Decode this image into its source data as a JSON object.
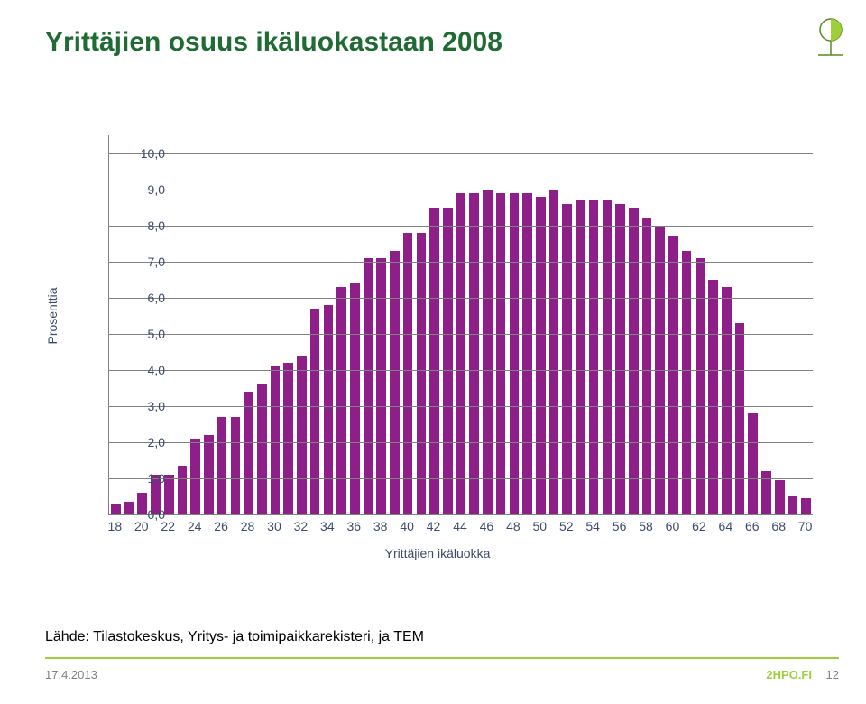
{
  "title": "Yrittäjien osuus ikäluokastaan 2008",
  "source": "Lähde: Tilastokeskus, Yritys- ja toimipaikkarekisteri, ja TEM",
  "footer": {
    "date": "17.4.2013",
    "brand": "2HPO.FI",
    "page": "12"
  },
  "logo": {
    "circle_fill": "#9ecf3b",
    "stroke": "#5a8a1f"
  },
  "chart": {
    "type": "bar",
    "ylabel": "Prosenttia",
    "xlabel": "Yrittäjien ikäluokka",
    "ylim": [
      0,
      10.5
    ],
    "ytick_step": 1.0,
    "ytick_labels": [
      "0,0",
      "1,0",
      "2,0",
      "3,0",
      "4,0",
      "5,0",
      "6,0",
      "7,0",
      "8,0",
      "9,0",
      "10,0"
    ],
    "xtick_every": 2,
    "bar_color": "#8e1f89",
    "grid_color": "#808080",
    "axis_color": "#808080",
    "background_color": "#ffffff",
    "label_color": "#3a4a6b",
    "label_fontsize": 14,
    "bar_width_ratio": 0.72,
    "categories": [
      18,
      19,
      20,
      21,
      22,
      23,
      24,
      25,
      26,
      27,
      28,
      29,
      30,
      31,
      32,
      33,
      34,
      35,
      36,
      37,
      38,
      39,
      40,
      41,
      42,
      43,
      44,
      45,
      46,
      47,
      48,
      49,
      50,
      51,
      52,
      53,
      54,
      55,
      56,
      57,
      58,
      59,
      60,
      61,
      62,
      63,
      64,
      65,
      66,
      67,
      68,
      69,
      70
    ],
    "values": [
      0.3,
      0.35,
      0.6,
      1.1,
      1.1,
      1.35,
      2.1,
      2.2,
      2.7,
      2.7,
      3.4,
      3.6,
      4.1,
      4.2,
      4.4,
      5.7,
      5.8,
      6.3,
      6.4,
      7.1,
      7.1,
      7.3,
      7.8,
      7.8,
      8.5,
      8.5,
      8.9,
      8.9,
      9.0,
      8.9,
      8.9,
      8.9,
      8.8,
      9.0,
      8.6,
      8.7,
      8.7,
      8.7,
      8.6,
      8.5,
      8.2,
      8.0,
      7.7,
      7.3,
      7.1,
      6.5,
      6.3,
      5.3,
      2.8,
      1.2,
      0.95,
      0.5,
      0.45
    ]
  }
}
